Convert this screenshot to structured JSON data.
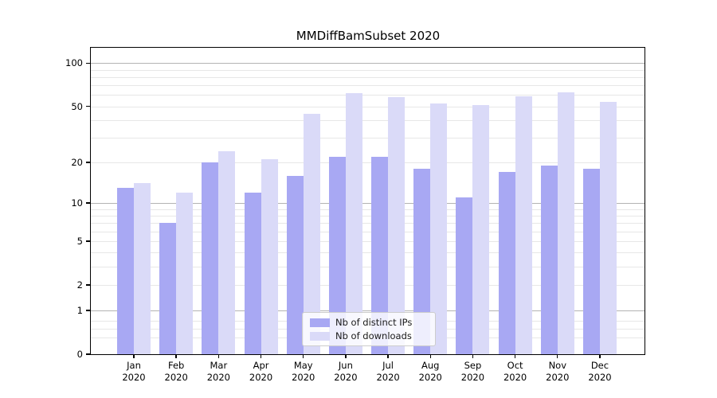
{
  "chart_data": {
    "type": "bar",
    "title": "MMDiffBamSubset 2020",
    "categories": [
      {
        "line1": "Jan",
        "line2": "2020"
      },
      {
        "line1": "Feb",
        "line2": "2020"
      },
      {
        "line1": "Mar",
        "line2": "2020"
      },
      {
        "line1": "Apr",
        "line2": "2020"
      },
      {
        "line1": "May",
        "line2": "2020"
      },
      {
        "line1": "Jun",
        "line2": "2020"
      },
      {
        "line1": "Jul",
        "line2": "2020"
      },
      {
        "line1": "Aug",
        "line2": "2020"
      },
      {
        "line1": "Sep",
        "line2": "2020"
      },
      {
        "line1": "Oct",
        "line2": "2020"
      },
      {
        "line1": "Nov",
        "line2": "2020"
      },
      {
        "line1": "Dec",
        "line2": "2020"
      }
    ],
    "series": [
      {
        "name": "Nb of distinct IPs",
        "color": "#a8a8f3",
        "values": [
          13,
          7,
          20,
          12,
          16,
          22,
          22,
          18,
          11,
          17,
          19,
          18
        ]
      },
      {
        "name": "Nb of downloads",
        "color": "#dadaf8",
        "values": [
          14,
          12,
          24,
          21,
          44,
          62,
          58,
          52,
          51,
          59,
          63,
          54
        ]
      }
    ],
    "yscale": "log1p",
    "ylim": [
      0,
      128
    ],
    "yticks": [
      0,
      1,
      2,
      5,
      10,
      20,
      50,
      100
    ],
    "major_gridlines": [
      1,
      10,
      100
    ],
    "minor_gridlines": [
      0.3,
      0.5,
      0.7,
      2,
      3,
      4,
      5,
      6,
      7,
      8,
      9,
      20,
      30,
      40,
      50,
      60,
      70,
      80,
      90
    ],
    "grid": true,
    "legend_position": "lower center"
  },
  "colors": {
    "background": "#ffffff",
    "bar_dark": "#a8a8f3",
    "bar_light": "#dadaf8",
    "major_grid": "#b3b3b3",
    "minor_grid": "#e7e7e7",
    "axis": "#000000",
    "legend_border": "#cccccc",
    "text": "#1a1a1a"
  }
}
